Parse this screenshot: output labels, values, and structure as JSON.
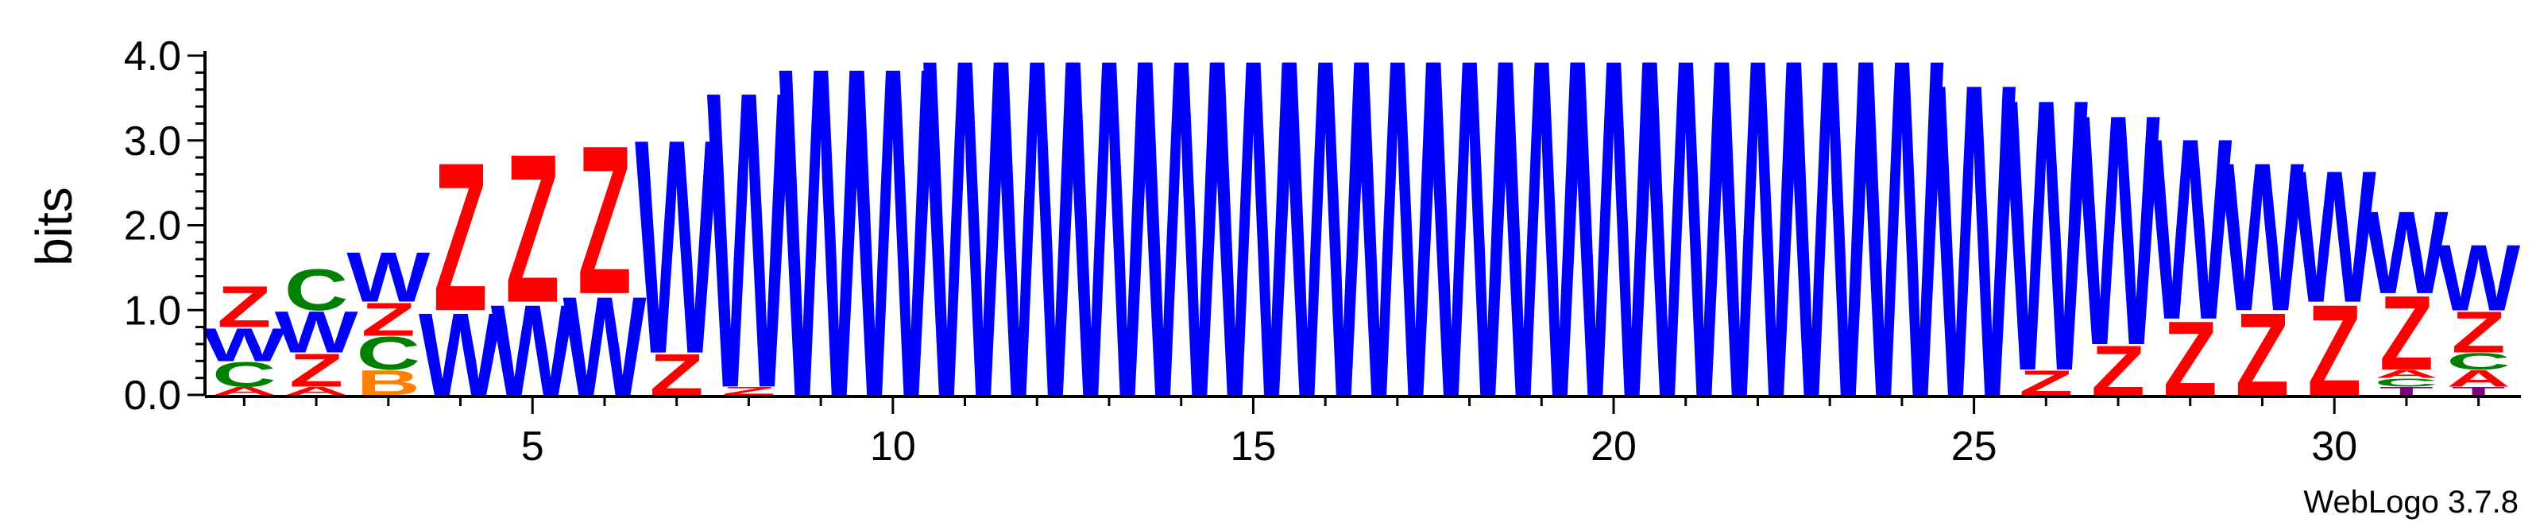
{
  "chart_data": {
    "type": "sequence-logo",
    "ylabel": "bits",
    "ylim": [
      0,
      4.0
    ],
    "y_ticks": [
      "0.0",
      "1.0",
      "2.0",
      "3.0",
      "4.0"
    ],
    "x_ticks": [
      5,
      10,
      15,
      20,
      25,
      30
    ],
    "xlim": [
      0.5,
      32.5
    ],
    "credit": "WebLogo 3.7.8",
    "colors": {
      "W": "#0000ff",
      "Z": "#ff0000",
      "C": "#008000",
      "B": "#ff8000",
      "A": "#ff0000",
      "G": "#008000",
      "T": "#800080"
    },
    "positions": [
      {
        "pos": 1,
        "stack": [
          [
            "A",
            0.1
          ],
          [
            "C",
            0.3
          ],
          [
            "W",
            0.4
          ],
          [
            "Z",
            0.5
          ]
        ]
      },
      {
        "pos": 2,
        "stack": [
          [
            "A",
            0.1
          ],
          [
            "Z",
            0.4
          ],
          [
            "W",
            0.5
          ],
          [
            "C",
            0.5
          ]
        ]
      },
      {
        "pos": 3,
        "stack": [
          [
            "B",
            0.3
          ],
          [
            "C",
            0.4
          ],
          [
            "Z",
            0.4
          ],
          [
            "W",
            0.6
          ]
        ]
      },
      {
        "pos": 4,
        "stack": [
          [
            "W",
            1.0
          ],
          [
            "Z",
            1.8
          ]
        ]
      },
      {
        "pos": 5,
        "stack": [
          [
            "W",
            1.1
          ],
          [
            "Z",
            1.8
          ]
        ]
      },
      {
        "pos": 6,
        "stack": [
          [
            "W",
            1.2
          ],
          [
            "Z",
            1.8
          ]
        ]
      },
      {
        "pos": 7,
        "stack": [
          [
            "Z",
            0.5
          ],
          [
            "W",
            2.6
          ]
        ]
      },
      {
        "pos": 8,
        "stack": [
          [
            "Z",
            0.1
          ],
          [
            "W",
            3.6
          ]
        ]
      },
      {
        "pos": 9,
        "stack": [
          [
            "W",
            4.0
          ]
        ]
      },
      {
        "pos": 10,
        "stack": [
          [
            "W",
            4.0
          ]
        ]
      },
      {
        "pos": 11,
        "stack": [
          [
            "W",
            4.1
          ]
        ]
      },
      {
        "pos": 12,
        "stack": [
          [
            "W",
            4.1
          ]
        ]
      },
      {
        "pos": 13,
        "stack": [
          [
            "W",
            4.1
          ]
        ]
      },
      {
        "pos": 14,
        "stack": [
          [
            "W",
            4.1
          ]
        ]
      },
      {
        "pos": 15,
        "stack": [
          [
            "W",
            4.1
          ]
        ]
      },
      {
        "pos": 16,
        "stack": [
          [
            "W",
            4.1
          ]
        ]
      },
      {
        "pos": 17,
        "stack": [
          [
            "W",
            4.1
          ]
        ]
      },
      {
        "pos": 18,
        "stack": [
          [
            "W",
            4.1
          ]
        ]
      },
      {
        "pos": 19,
        "stack": [
          [
            "W",
            4.1
          ]
        ]
      },
      {
        "pos": 20,
        "stack": [
          [
            "W",
            4.1
          ]
        ]
      },
      {
        "pos": 21,
        "stack": [
          [
            "W",
            4.1
          ]
        ]
      },
      {
        "pos": 22,
        "stack": [
          [
            "W",
            4.1
          ]
        ]
      },
      {
        "pos": 23,
        "stack": [
          [
            "W",
            4.1
          ]
        ]
      },
      {
        "pos": 24,
        "stack": [
          [
            "W",
            4.1
          ]
        ]
      },
      {
        "pos": 25,
        "stack": [
          [
            "W",
            3.8
          ]
        ]
      },
      {
        "pos": 26,
        "stack": [
          [
            "Z",
            0.3
          ],
          [
            "W",
            3.3
          ]
        ]
      },
      {
        "pos": 27,
        "stack": [
          [
            "Z",
            0.6
          ],
          [
            "W",
            2.8
          ]
        ]
      },
      {
        "pos": 28,
        "stack": [
          [
            "Z",
            0.9
          ],
          [
            "W",
            2.2
          ]
        ]
      },
      {
        "pos": 29,
        "stack": [
          [
            "Z",
            1.0
          ],
          [
            "W",
            1.8
          ]
        ]
      },
      {
        "pos": 30,
        "stack": [
          [
            "Z",
            1.1
          ],
          [
            "W",
            1.6
          ]
        ]
      },
      {
        "pos": 31,
        "stack": [
          [
            "T",
            0.1
          ],
          [
            "C",
            0.1
          ],
          [
            "A",
            0.1
          ],
          [
            "Z",
            0.9
          ],
          [
            "W",
            1.0
          ]
        ]
      },
      {
        "pos": 32,
        "stack": [
          [
            "T",
            0.1
          ],
          [
            "A",
            0.2
          ],
          [
            "C",
            0.2
          ],
          [
            "Z",
            0.5
          ],
          [
            "W",
            0.8
          ]
        ]
      }
    ]
  }
}
